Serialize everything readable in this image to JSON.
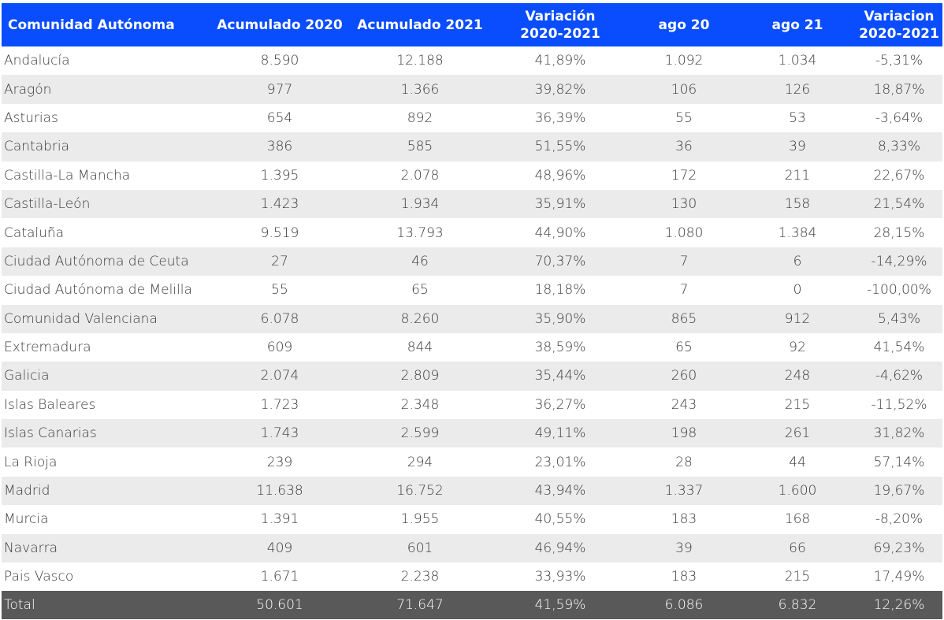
{
  "table": {
    "headers": [
      {
        "lines": [
          "Comunidad Autónoma"
        ]
      },
      {
        "lines": [
          "Acumulado 2020"
        ]
      },
      {
        "lines": [
          "Acumulado 2021"
        ]
      },
      {
        "lines": [
          "Variación",
          "2020-2021"
        ]
      },
      {
        "lines": [
          "ago 20"
        ]
      },
      {
        "lines": [
          "ago 21"
        ]
      },
      {
        "lines": [
          "Variacion",
          "2020-2021"
        ]
      }
    ],
    "rows": [
      [
        "Andalucía",
        "8.590",
        "12.188",
        "41,89%",
        "1.092",
        "1.034",
        "-5,31%"
      ],
      [
        "Aragón",
        "977",
        "1.366",
        "39,82%",
        "106",
        "126",
        "18,87%"
      ],
      [
        "Asturias",
        "654",
        "892",
        "36,39%",
        "55",
        "53",
        "-3,64%"
      ],
      [
        "Cantabria",
        "386",
        "585",
        "51,55%",
        "36",
        "39",
        "8,33%"
      ],
      [
        "Castilla-La Mancha",
        "1.395",
        "2.078",
        "48,96%",
        "172",
        "211",
        "22,67%"
      ],
      [
        "Castilla-León",
        "1.423",
        "1.934",
        "35,91%",
        "130",
        "158",
        "21,54%"
      ],
      [
        "Cataluña",
        "9.519",
        "13.793",
        "44,90%",
        "1.080",
        "1.384",
        "28,15%"
      ],
      [
        "Ciudad Autónoma de Ceuta",
        "27",
        "46",
        "70,37%",
        "7",
        "6",
        "-14,29%"
      ],
      [
        "Ciudad Autónoma de Melilla",
        "55",
        "65",
        "18,18%",
        "7",
        "0",
        "-100,00%"
      ],
      [
        "Comunidad Valenciana",
        "6.078",
        "8.260",
        "35,90%",
        "865",
        "912",
        "5,43%"
      ],
      [
        "Extremadura",
        "609",
        "844",
        "38,59%",
        "65",
        "92",
        "41,54%"
      ],
      [
        "Galicia",
        "2.074",
        "2.809",
        "35,44%",
        "260",
        "248",
        "-4,62%"
      ],
      [
        "Islas Baleares",
        "1.723",
        "2.348",
        "36,27%",
        "243",
        "215",
        "-11,52%"
      ],
      [
        "Islas Canarias",
        "1.743",
        "2.599",
        "49,11%",
        "198",
        "261",
        "31,82%"
      ],
      [
        "La Rioja",
        "239",
        "294",
        "23,01%",
        "28",
        "44",
        "57,14%"
      ],
      [
        "Madrid",
        "11.638",
        "16.752",
        "43,94%",
        "1.337",
        "1.600",
        "19,67%"
      ],
      [
        "Murcia",
        "1.391",
        "1.955",
        "40,55%",
        "183",
        "168",
        "-8,20%"
      ],
      [
        "Navarra",
        "409",
        "601",
        "46,94%",
        "39",
        "66",
        "69,23%"
      ],
      [
        "Pais Vasco",
        "1.671",
        "2.238",
        "33,93%",
        "183",
        "215",
        "17,49%"
      ]
    ],
    "total": [
      "Total",
      "50.601",
      "71.647",
      "41,59%",
      "6.086",
      "6.832",
      "12,26%"
    ]
  },
  "colors": {
    "header_bg": "#0a4dff",
    "header_text": "#ffffff",
    "stripe_bg": "#ebebeb",
    "total_bg": "#595959",
    "body_text": "#3a3a3a"
  }
}
